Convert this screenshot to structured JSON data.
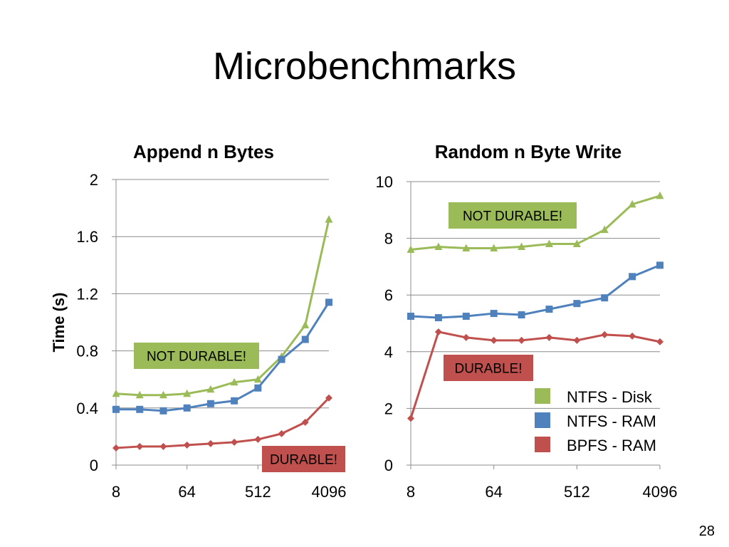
{
  "slide": {
    "title": "Microbenchmarks",
    "page_number": "28"
  },
  "legend": [
    {
      "label": "NTFS - Disk",
      "color": "#9bbb59"
    },
    {
      "label": "NTFS - RAM",
      "color": "#4f81bd"
    },
    {
      "label": "BPFS - RAM",
      "color": "#c0504d"
    }
  ],
  "chart_data": [
    {
      "type": "line",
      "title": "Append n Bytes",
      "ylabel": "Time (s)",
      "xlabel": "",
      "ylim": [
        0,
        2
      ],
      "yticks": [
        "0",
        "0.4",
        "0.8",
        "1.2",
        "1.6",
        "2"
      ],
      "xticks": [
        "8",
        "64",
        "512",
        "4096"
      ],
      "x": [
        8,
        16,
        32,
        64,
        128,
        256,
        512,
        1024,
        2048,
        4096
      ],
      "series": [
        {
          "name": "NTFS - Disk",
          "color": "#9bbb59",
          "marker": "triangle",
          "values": [
            0.5,
            0.49,
            0.49,
            0.5,
            0.53,
            0.58,
            0.6,
            0.76,
            0.98,
            1.72
          ]
        },
        {
          "name": "NTFS - RAM",
          "color": "#4f81bd",
          "marker": "square",
          "values": [
            0.39,
            0.39,
            0.38,
            0.4,
            0.43,
            0.45,
            0.54,
            0.74,
            0.88,
            1.14
          ]
        },
        {
          "name": "BPFS - RAM",
          "color": "#c0504d",
          "marker": "diamond",
          "values": [
            0.12,
            0.13,
            0.13,
            0.14,
            0.15,
            0.16,
            0.18,
            0.22,
            0.3,
            0.47
          ]
        }
      ],
      "annotations": [
        {
          "text": "NOT DURABLE!",
          "color": "#9bbb59"
        },
        {
          "text": "DURABLE!",
          "color": "#c0504d"
        }
      ]
    },
    {
      "type": "line",
      "title": "Random n Byte Write",
      "ylabel": "",
      "xlabel": "",
      "ylim": [
        0,
        10
      ],
      "yticks": [
        "0",
        "2",
        "4",
        "6",
        "8",
        "10"
      ],
      "xticks": [
        "8",
        "64",
        "512",
        "4096"
      ],
      "x": [
        8,
        16,
        32,
        64,
        128,
        256,
        512,
        1024,
        2048,
        4096
      ],
      "series": [
        {
          "name": "NTFS - Disk",
          "color": "#9bbb59",
          "marker": "triangle",
          "values": [
            7.6,
            7.7,
            7.65,
            7.65,
            7.7,
            7.8,
            7.8,
            8.3,
            9.2,
            9.5
          ]
        },
        {
          "name": "NTFS - RAM",
          "color": "#4f81bd",
          "marker": "square",
          "values": [
            5.25,
            5.2,
            5.25,
            5.35,
            5.3,
            5.5,
            5.7,
            5.9,
            6.65,
            7.05
          ]
        },
        {
          "name": "BPFS - RAM",
          "color": "#c0504d",
          "marker": "diamond",
          "values": [
            1.65,
            4.7,
            4.5,
            4.4,
            4.4,
            4.5,
            4.4,
            4.6,
            4.55,
            4.35
          ]
        }
      ],
      "annotations": [
        {
          "text": "NOT DURABLE!",
          "color": "#9bbb59"
        },
        {
          "text": "DURABLE!",
          "color": "#c0504d"
        }
      ]
    }
  ]
}
